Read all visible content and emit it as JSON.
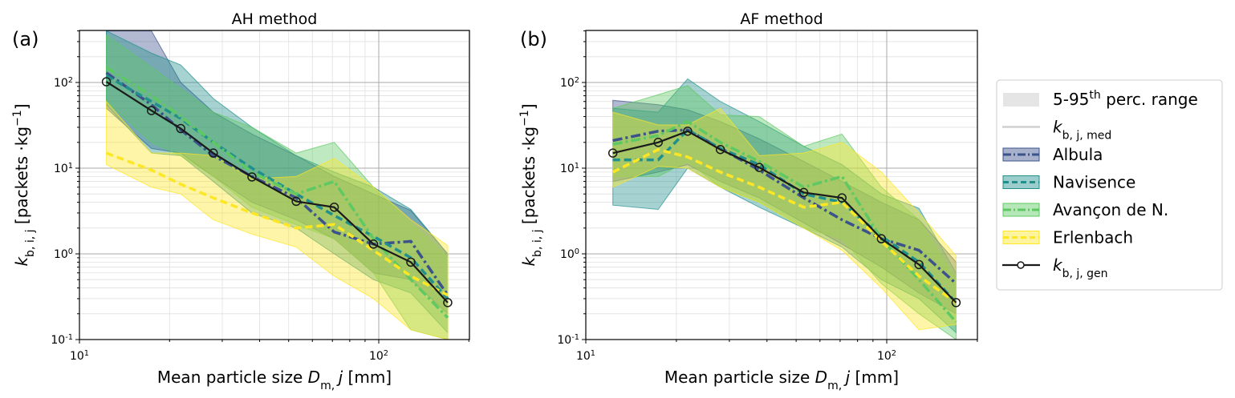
{
  "chart_data": [
    {
      "type": "line",
      "panel_label": "(a)",
      "title": "AH method",
      "xlabel": "Mean particle size D_m,j [mm]",
      "ylabel": "k_b,i,j [packets ·kg^-1]",
      "xscale": "log",
      "yscale": "log",
      "xlim": [
        10,
        200
      ],
      "ylim": [
        0.1,
        400
      ],
      "x_ticks": [
        "10^1",
        "10^2"
      ],
      "y_ticks": [
        "10^-1",
        "10^0",
        "10^1",
        "10^2"
      ],
      "grid": true,
      "x": [
        12.3,
        17.4,
        21.8,
        28,
        37.7,
        53,
        71,
        96,
        128,
        170
      ],
      "series": [
        {
          "name": "Albula",
          "color": "#3b528b",
          "style": "dashdot",
          "median": [
            130,
            55,
            28,
            14,
            8,
            4.5,
            1.8,
            1.3,
            1.4,
            0.33
          ],
          "p5": [
            50,
            17,
            15,
            8,
            4,
            2.5,
            1.5,
            0.6,
            0.5,
            0.2
          ],
          "p95": [
            400,
            400,
            100,
            45,
            25,
            14,
            8,
            5,
            3.2,
            1.0
          ]
        },
        {
          "name": "Navisence",
          "color": "#21908d",
          "style": "dashed",
          "median": [
            120,
            60,
            38,
            20,
            10,
            5,
            2.8,
            1.6,
            0.9,
            0.3
          ],
          "p5": [
            55,
            15,
            14,
            7,
            3,
            2,
            1,
            0.5,
            0.35,
            0.12
          ],
          "p95": [
            400,
            220,
            160,
            65,
            30,
            14,
            9,
            6,
            3.3,
            1.0
          ]
        },
        {
          "name": "Avançon de N.",
          "color": "#5ec962",
          "style": "dashdot",
          "median": [
            150,
            70,
            40,
            20,
            9,
            5,
            7,
            1.5,
            0.5,
            0.18
          ],
          "p5": [
            60,
            20,
            14,
            8,
            3.5,
            2.2,
            1.5,
            0.6,
            0.13,
            0.1
          ],
          "p95": [
            360,
            150,
            85,
            45,
            30,
            15,
            20,
            6,
            2.3,
            0.9
          ]
        },
        {
          "name": "Erlenbach",
          "color": "#fde725",
          "style": "dashed",
          "median": [
            15,
            9.5,
            6.5,
            4.5,
            3,
            2,
            2.2,
            1.1,
            0.55,
            0.33
          ],
          "p5": [
            11,
            6,
            5,
            2.5,
            1.7,
            1.2,
            0.55,
            0.3,
            0.13,
            0.1
          ],
          "p95": [
            60,
            15,
            15,
            14,
            7.5,
            8,
            13,
            6,
            2.5,
            1.25
          ]
        }
      ],
      "generic": {
        "name": "k_b,j,gen",
        "color": "#1a1a1a",
        "values": [
          102,
          47,
          29,
          15,
          7.9,
          4.1,
          3.5,
          1.3,
          0.8,
          0.27
        ]
      }
    },
    {
      "type": "line",
      "panel_label": "(b)",
      "title": "AF method",
      "xlabel": "Mean particle size D_m,j [mm]",
      "ylabel": "k_b,i,j [packets ·kg^-1]",
      "xscale": "log",
      "yscale": "log",
      "xlim": [
        10,
        200
      ],
      "ylim": [
        0.1,
        400
      ],
      "x_ticks": [
        "10^1",
        "10^2"
      ],
      "y_ticks": [
        "10^-1",
        "10^0",
        "10^1",
        "10^2"
      ],
      "grid": true,
      "x": [
        12.3,
        17.4,
        21.8,
        28,
        37.7,
        53,
        71,
        96,
        128,
        170
      ],
      "series": [
        {
          "name": "Albula",
          "color": "#3b528b",
          "style": "dashdot",
          "median": [
            21,
            27,
            28,
            17,
            9.5,
            4.5,
            2.5,
            1.5,
            1.1,
            0.45
          ],
          "p5": [
            7,
            9,
            11,
            7,
            4.5,
            2.3,
            1.3,
            0.7,
            0.35,
            0.2
          ],
          "p95": [
            62,
            55,
            48,
            35,
            22,
            12,
            7,
            4,
            2.5,
            0.8
          ]
        },
        {
          "name": "Navisence",
          "color": "#21908d",
          "style": "dashed",
          "median": [
            12.5,
            12.5,
            28,
            17,
            11,
            5,
            4,
            1.6,
            0.8,
            0.27
          ],
          "p5": [
            3.7,
            3.3,
            10,
            6,
            3.5,
            2,
            1.2,
            0.5,
            0.3,
            0.12
          ],
          "p95": [
            50,
            45,
            110,
            60,
            35,
            18,
            11,
            5,
            3.4,
            0.6
          ]
        },
        {
          "name": "Avançon de N.",
          "color": "#5ec962",
          "style": "dashdot",
          "median": [
            19,
            24,
            35,
            20,
            12,
            6,
            8,
            1.5,
            0.5,
            0.16
          ],
          "p5": [
            8,
            8,
            12,
            6,
            4,
            2,
            1.5,
            0.45,
            0.2,
            0.1
          ],
          "p95": [
            50,
            72,
            92,
            42,
            40,
            18,
            25,
            6,
            2.5,
            0.5
          ]
        },
        {
          "name": "Erlenbach",
          "color": "#fde725",
          "style": "dashed",
          "median": [
            9,
            16.5,
            13.5,
            9,
            6,
            3.5,
            4,
            1.4,
            0.55,
            0.27
          ],
          "p5": [
            6,
            10.5,
            10,
            6,
            4,
            2,
            1.1,
            0.4,
            0.13,
            0.15
          ],
          "p95": [
            45,
            32,
            32,
            50,
            14,
            15,
            20,
            9,
            3,
            0.95
          ]
        }
      ],
      "generic": {
        "name": "k_b,j,gen",
        "color": "#1a1a1a",
        "values": [
          15,
          20,
          27,
          16.5,
          10.2,
          5.2,
          4.5,
          1.5,
          0.75,
          0.27
        ]
      }
    }
  ],
  "legend": {
    "placement": "right",
    "items": [
      {
        "label": "5-95",
        "sup": "th",
        "rest": " perc. range",
        "kind": "patch",
        "color": "#e5e5e5"
      },
      {
        "label": "k",
        "sub": "b, j, med",
        "kind": "line",
        "color": "#d0d0d0"
      },
      {
        "label": "Albula",
        "kind": "series",
        "color": "#3b528b",
        "style": "dashdot"
      },
      {
        "label": "Navisence",
        "kind": "series",
        "color": "#21908d",
        "style": "dashed"
      },
      {
        "label": "Avançon de N.",
        "kind": "series",
        "color": "#5ec962",
        "style": "dashdot"
      },
      {
        "label": "Erlenbach",
        "kind": "series",
        "color": "#fde725",
        "style": "dashed"
      },
      {
        "label": "k",
        "sub": "b, j, gen",
        "kind": "marker-line",
        "color": "#1a1a1a"
      }
    ]
  }
}
